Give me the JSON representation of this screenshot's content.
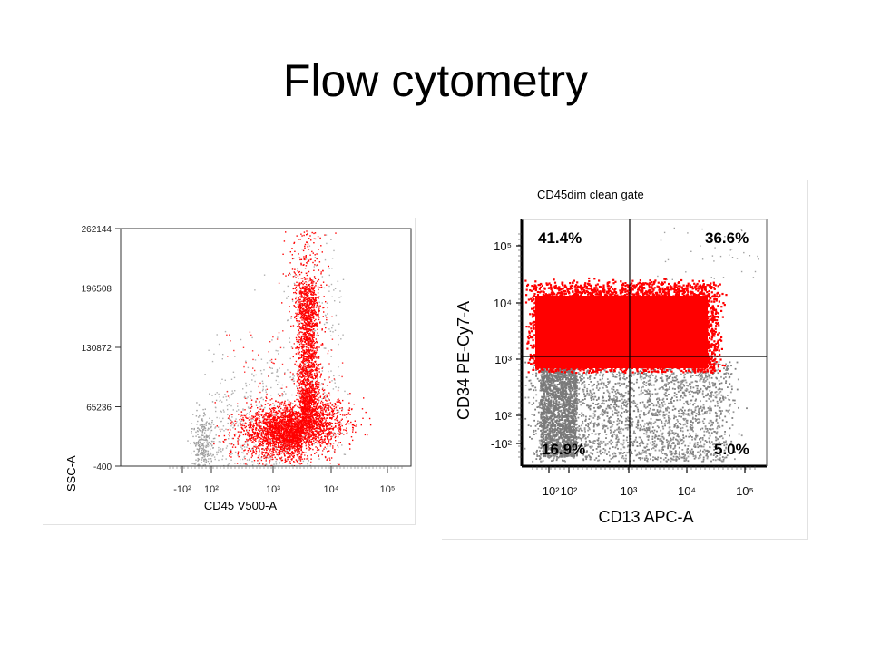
{
  "slide": {
    "title": "Flow cytometry"
  },
  "chart_data": [
    {
      "type": "scatter",
      "title": "",
      "xlabel": "CD45 V500-A",
      "ylabel": "SSC-A",
      "x_scale": "biexponential",
      "x_ticks": [
        "-10²",
        "10²",
        "10³",
        "10⁴",
        "10⁵"
      ],
      "y_ticks": [
        "262144",
        "196508",
        "130872",
        "65236",
        "-400"
      ],
      "ylim": [
        -400,
        262144
      ],
      "series": [
        {
          "color": "#ff0000",
          "populations": [
            {
              "x_center": 2500,
              "y_center": 40000,
              "description": "main cluster"
            },
            {
              "x_center": 3500,
              "y_center": 130000
            }
          ]
        },
        {
          "color": "#a0a0a0",
          "populations": [
            {
              "x_center": -60,
              "y_center": 30000
            }
          ]
        }
      ],
      "grid": false
    },
    {
      "type": "scatter",
      "title": "CD45dim clean gate",
      "xlabel": "CD13 APC-A",
      "ylabel": "CD34 PE-Cy7-A",
      "x_ticks": [
        "-10²",
        "10²",
        "10³",
        "10⁴",
        "10⁵"
      ],
      "y_ticks": [
        "10⁵",
        "10⁴",
        "10³",
        "10²",
        "-10²"
      ],
      "quadrant_gate": {
        "x": 1000,
        "y": 1000
      },
      "quadrants": [
        {
          "position": "upper-left",
          "label": "41.4%"
        },
        {
          "position": "upper-right",
          "label": "36.6%"
        },
        {
          "position": "lower-left",
          "label": "16.9%"
        },
        {
          "position": "lower-right",
          "label": "5.0%"
        }
      ],
      "series": [
        {
          "color": "#ff0000",
          "gate": "CD34 >= 10³"
        },
        {
          "color": "#808080",
          "gate": "CD34 < 10³"
        }
      ],
      "grid": false
    }
  ]
}
